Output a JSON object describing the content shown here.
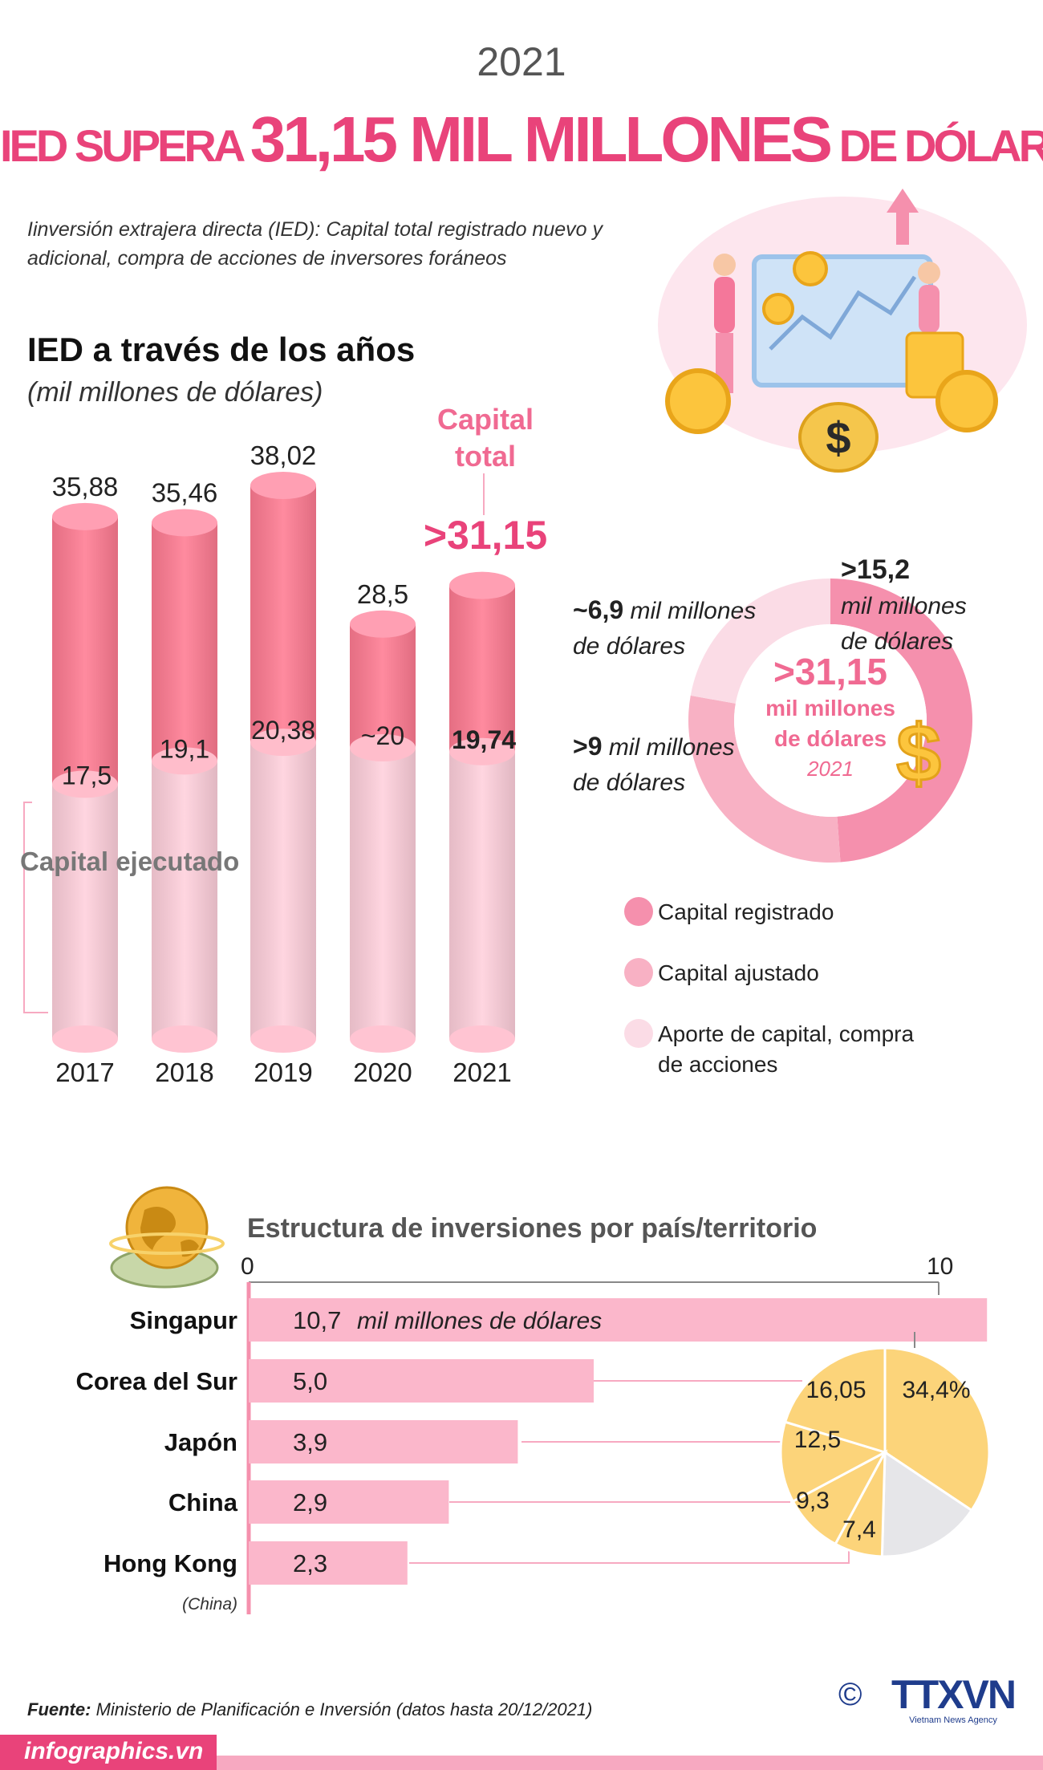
{
  "header": {
    "year": "2021",
    "headline_pre": "IED SUPERA ",
    "headline_big": "31,15 MIL MILLONES",
    "headline_post": " DE DÓLARES",
    "intro": "Iinversión extrajera directa (IED): Capital total registrado nuevo y adicional, compra de acciones de inversores foráneos"
  },
  "bars_section": {
    "title": "IED a través de los años",
    "subtitle": "(mil millones de dólares)",
    "total_label_line1": "Capital",
    "total_label_line2": "total",
    "total_big": ">31,15",
    "executed_label": "Capital ejecutado"
  },
  "donut": {
    "total": ">31,15",
    "unit_line1": "mil millones",
    "unit_line2": "de dólares",
    "year": "2021",
    "seg1_value": ">15,2",
    "seg1_unit_line1": "mil millones",
    "seg1_unit_line2": "de dólares",
    "seg2_value": ">9",
    "seg2_unit_line1": " mil millones",
    "seg2_unit_line2": "de dólares",
    "seg3_value": "~6,9",
    "seg3_unit_line1": " mil millones",
    "seg3_unit_line2": "de dólares"
  },
  "legend": {
    "item1": "Capital registrado",
    "item2": "Capital ajustado",
    "item3_line1": "Aporte de capital, compra",
    "item3_line2": "de acciones"
  },
  "countries_section": {
    "title": "Estructura de inversiones por país/territorio",
    "axis_min": "0",
    "axis_max": "10",
    "unit_label": "mil millones de  dólares",
    "hongkong_note": "(China)"
  },
  "footer": {
    "source_label": "Fuente:",
    "source_text": " Ministerio de Planificación e Inversión (datos hasta 20/12/2021)",
    "site": "infographics.vn",
    "copyright": "©",
    "agency": "TTXVN",
    "agency_sub": "Vietnam News Agency"
  },
  "colors": {
    "accent": "#e9437a",
    "registered": "#f590ad",
    "adjusted": "#f8b1c4",
    "contribution": "#fbdce6",
    "bar_light": "#ffd0dc",
    "bar_dark": "#ff7b92",
    "country_bar": "#fbb7cb",
    "pie_yellow": "#fcd47a",
    "pie_grey": "#e6e6e9"
  },
  "chart_data": [
    {
      "type": "bar",
      "title": "IED a través de los años",
      "subtitle": "(mil millones de dólares)",
      "categories": [
        "2017",
        "2018",
        "2019",
        "2020",
        "2021"
      ],
      "series": [
        {
          "name": "Capital total",
          "values": [
            35.88,
            35.46,
            38.02,
            28.5,
            31.15
          ],
          "labels": [
            "35,88",
            "35,46",
            "38,02",
            "28,5",
            ">31,15"
          ]
        },
        {
          "name": "Capital ejecutado",
          "values": [
            17.5,
            19.1,
            20.38,
            20,
            19.74
          ],
          "labels": [
            "17,5",
            "19,1",
            "20,38",
            "~20",
            "19,74"
          ]
        }
      ],
      "ylim": [
        0,
        38.02
      ]
    },
    {
      "type": "pie",
      "title": "",
      "labels": [
        "Capital registrado",
        "Capital ajustado",
        "Aporte de capital, compra de acciones"
      ],
      "values": [
        15.2,
        9,
        6.9
      ],
      "value_labels": [
        ">15,2",
        ">9",
        "~6,9"
      ],
      "total": ">31,15"
    },
    {
      "type": "bar",
      "orientation": "horizontal",
      "title": "Estructura de inversiones por país/territorio",
      "categories": [
        "Singapur",
        "Corea del Sur",
        "Japón",
        "China",
        "Hong Kong"
      ],
      "values": [
        10.7,
        5.0,
        3.9,
        2.9,
        2.3
      ],
      "value_labels": [
        "10,7",
        "5,0",
        "3,9",
        "2,9",
        "2,3"
      ],
      "xlim": [
        0,
        10
      ],
      "xticks": [
        "0",
        "10"
      ]
    },
    {
      "type": "pie",
      "title": "",
      "labels": [
        "34,4%",
        "16,05",
        "12,5",
        "9,3",
        "7,4"
      ],
      "values": [
        34.4,
        16.05,
        12.5,
        9.3,
        7.4
      ]
    }
  ]
}
